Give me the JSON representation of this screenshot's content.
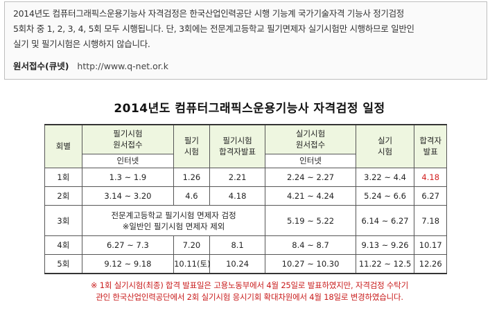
{
  "notice": {
    "lines": [
      "2014년도 컴퓨터그래픽스운용기능사 자격검정은 한국산업인력공단 시행 기능계 국가기술자격 기능사 정기검정",
      "5회차 중 1, 2, 3, 4, 5회 모두 시행됩니다. 단, 3회에는 전문계고등학교 필기면제자 실기시험만 시행하므로 일반인",
      "실기 및 필기시험은 시행하지 않습니다."
    ],
    "url_label": "원서접수(큐넷)",
    "url": "http://www.q-net.or.k"
  },
  "title": "2014년도 컴퓨터그래픽스운용기능사 자격검정 일정",
  "table": {
    "headers": {
      "round": "회별",
      "written_reg_line1": "필기시험",
      "written_reg_line2": "원서접수",
      "written_exam_line1": "필기",
      "written_exam_line2": "시험",
      "written_result_line1": "필기시험",
      "written_result_line2": "합격자발표",
      "practical_reg_line1": "실기시험",
      "practical_reg_line2": "원서접수",
      "practical_exam_line1": "실기",
      "practical_exam_line2": "시험",
      "final_result_line1": "합격자",
      "final_result_line2": "발표",
      "online_1": "인터넷",
      "online_2": "인터넷"
    },
    "rows": [
      {
        "round": "1회",
        "written_reg": "1.3 ~ 1.9",
        "written_exam": "1.26",
        "written_result": "2.21",
        "practical_reg": "2.24 ~ 2.27",
        "practical_exam": "3.22 ~ 4.4",
        "final_result": "4.18"
      },
      {
        "round": "2회",
        "written_reg": "3.14 ~ 3.20",
        "written_exam": "4.6",
        "written_result": "4.18",
        "practical_reg": "4.21 ~ 4.24",
        "practical_exam": "5.24 ~ 6.6",
        "final_result": "6.27"
      },
      {
        "round": "3회",
        "merged_line1": "전문계고등학교 필기시험 면제자 검정",
        "merged_line2": "※일반인 필기시험 면제자 제외",
        "practical_reg": "5.19 ~ 5.22",
        "practical_exam": "6.14 ~ 6.27",
        "final_result": "7.18"
      },
      {
        "round": "4회",
        "written_reg": "6.27 ~ 7.3",
        "written_exam": "7.20",
        "written_result": "8.1",
        "practical_reg": "8.4 ~ 8.7",
        "practical_exam": "9.13 ~ 9.26",
        "final_result": "10.17"
      },
      {
        "round": "5회",
        "written_reg": "9.12 ~ 9.18",
        "written_exam": "10.11(토)",
        "written_result": "10.24",
        "practical_reg": "10.27 ~ 10.30",
        "practical_exam": "11.22 ~ 12.5",
        "final_result": "12.26"
      }
    ]
  },
  "footnote": {
    "line1": "※ 1회 실기시험(최종) 합격 발표일은 고용노동부에서 4월 25일로 발표하였지만, 자격검정 수탁기",
    "line2": "관인 한국산업인력공단에서 2회 실기시험 응시기회 확대차원에서 4월 18일로 변경하였습니다."
  },
  "colors": {
    "header_bg": "#eef6e0",
    "highlight_red": "#d21d1d",
    "footnote_red": "#c81a1a",
    "notice_bg": "#fafafa"
  }
}
